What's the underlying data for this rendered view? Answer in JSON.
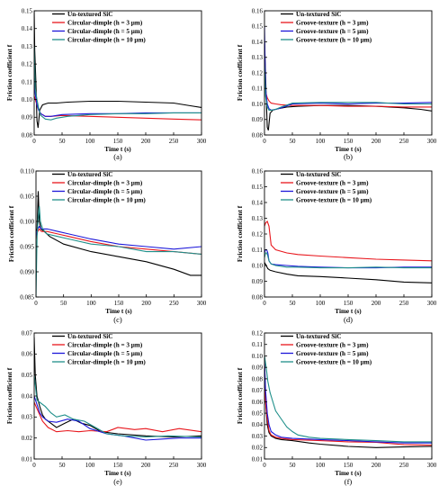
{
  "colors": {
    "untextured": "#000000",
    "h3": "#e8161c",
    "h5": "#1d17d9",
    "h10": "#1f8f8a"
  },
  "chart_data": [
    {
      "type": "line",
      "panel": "(a)",
      "xlabel": "Time t (s)",
      "ylabel": "Friction coefficient f",
      "xlim": [
        0,
        300
      ],
      "ylim": [
        0.08,
        0.15
      ],
      "xticks": [
        "0",
        "50",
        "100",
        "150",
        "200",
        "250",
        "300"
      ],
      "yticks": [
        "0.08",
        "0.09",
        "0.10",
        "0.11",
        "0.12",
        "0.13",
        "0.14",
        "0.15"
      ],
      "legend": "top-right",
      "series": [
        {
          "name": "Un-textured SiC",
          "color_key": "untextured",
          "x": [
            0,
            1,
            3,
            5,
            7,
            10,
            15,
            25,
            40,
            60,
            100,
            150,
            200,
            250,
            280,
            300
          ],
          "y": [
            0.15,
            0.128,
            0.11,
            0.088,
            0.084,
            0.094,
            0.097,
            0.098,
            0.098,
            0.0985,
            0.099,
            0.099,
            0.0985,
            0.098,
            0.0965,
            0.0955
          ]
        },
        {
          "name": "Circular-dimple (h = 3 μm)",
          "color_key": "h3",
          "x": [
            0,
            2,
            5,
            8,
            12,
            20,
            30,
            50,
            100,
            150,
            200,
            250,
            300
          ],
          "y": [
            0.102,
            0.1,
            0.097,
            0.094,
            0.092,
            0.0905,
            0.0905,
            0.091,
            0.0905,
            0.09,
            0.0895,
            0.089,
            0.0885
          ]
        },
        {
          "name": "Circular-dimple (h = 5 μm)",
          "color_key": "h5",
          "x": [
            0,
            2,
            5,
            8,
            12,
            20,
            30,
            50,
            100,
            150,
            200,
            250,
            300
          ],
          "y": [
            0.112,
            0.103,
            0.097,
            0.094,
            0.092,
            0.0905,
            0.0905,
            0.0915,
            0.092,
            0.092,
            0.0925,
            0.0925,
            0.0925
          ]
        },
        {
          "name": "Circular-dimple (h = 10 μm)",
          "color_key": "h10",
          "x": [
            0,
            2,
            5,
            8,
            12,
            20,
            30,
            40,
            60,
            100,
            150,
            200,
            250,
            300
          ],
          "y": [
            0.13,
            0.106,
            0.1,
            0.095,
            0.091,
            0.089,
            0.0885,
            0.0895,
            0.0905,
            0.0915,
            0.092,
            0.092,
            0.0925,
            0.0925
          ]
        }
      ]
    },
    {
      "type": "line",
      "panel": "(b)",
      "xlabel": "Time t (s)",
      "ylabel": "Friction coefficient f",
      "xlim": [
        0,
        300
      ],
      "ylim": [
        0.08,
        0.16
      ],
      "xticks": [
        "0",
        "50",
        "100",
        "150",
        "200",
        "250",
        "300"
      ],
      "yticks": [
        "0.08",
        "0.09",
        "0.10",
        "0.11",
        "0.12",
        "0.13",
        "0.14",
        "0.15",
        "0.16"
      ],
      "legend": "top-right",
      "series": [
        {
          "name": "Un-textured SiC",
          "color_key": "untextured",
          "x": [
            0,
            1,
            3,
            5,
            7,
            10,
            15,
            25,
            40,
            60,
            100,
            150,
            200,
            250,
            280,
            300
          ],
          "y": [
            0.14,
            0.13,
            0.105,
            0.085,
            0.083,
            0.094,
            0.096,
            0.097,
            0.098,
            0.0985,
            0.099,
            0.099,
            0.0985,
            0.0975,
            0.0965,
            0.0955
          ]
        },
        {
          "name": "Groove-texture (h = 3 μm)",
          "color_key": "h3",
          "x": [
            0,
            2,
            5,
            8,
            12,
            20,
            30,
            50,
            100,
            150,
            200,
            250,
            300
          ],
          "y": [
            0.118,
            0.108,
            0.104,
            0.102,
            0.1005,
            0.1,
            0.0995,
            0.099,
            0.099,
            0.0985,
            0.0985,
            0.098,
            0.098
          ]
        },
        {
          "name": "Groove-texture (h = 5 μm)",
          "color_key": "h5",
          "x": [
            0,
            2,
            5,
            8,
            12,
            20,
            30,
            50,
            100,
            150,
            200,
            250,
            300
          ],
          "y": [
            0.15,
            0.11,
            0.1,
            0.097,
            0.096,
            0.0965,
            0.0975,
            0.1,
            0.1005,
            0.1,
            0.1005,
            0.1005,
            0.101
          ]
        },
        {
          "name": "Groove-texture (h = 10 μm)",
          "color_key": "h10",
          "x": [
            0,
            2,
            5,
            8,
            12,
            20,
            30,
            50,
            100,
            150,
            200,
            250,
            300
          ],
          "y": [
            0.125,
            0.105,
            0.098,
            0.096,
            0.096,
            0.0965,
            0.098,
            0.1005,
            0.101,
            0.101,
            0.101,
            0.1,
            0.1
          ]
        }
      ]
    },
    {
      "type": "line",
      "panel": "(c)",
      "xlabel": "Time t (s)",
      "ylabel": "Friction coefficient f",
      "xlim": [
        0,
        300
      ],
      "ylim": [
        0.085,
        0.11
      ],
      "xticks": [
        "0",
        "50",
        "100",
        "150",
        "200",
        "250",
        "300"
      ],
      "yticks": [
        "0.085",
        "0.090",
        "0.095",
        "0.100",
        "0.105",
        "0.110"
      ],
      "legend": "top-right",
      "series": [
        {
          "name": "Un-textured SiC",
          "color_key": "untextured",
          "x": [
            0,
            2,
            4,
            6,
            9,
            15,
            25,
            50,
            100,
            150,
            200,
            250,
            280,
            300
          ],
          "y": [
            0.098,
            0.0985,
            0.106,
            0.1,
            0.0985,
            0.098,
            0.097,
            0.0955,
            0.094,
            0.093,
            0.092,
            0.0905,
            0.0893,
            0.0893
          ]
        },
        {
          "name": "Circular-dimple (h = 3 μm)",
          "color_key": "h3",
          "x": [
            0,
            3,
            6,
            10,
            20,
            40,
            60,
            100,
            150,
            200,
            250,
            300
          ],
          "y": [
            0.0965,
            0.098,
            0.0985,
            0.098,
            0.098,
            0.0975,
            0.097,
            0.096,
            0.095,
            0.0945,
            0.094,
            0.0935
          ]
        },
        {
          "name": "Circular-dimple (h = 5 μm)",
          "color_key": "h5",
          "x": [
            0,
            3,
            6,
            10,
            20,
            40,
            60,
            100,
            150,
            200,
            250,
            300
          ],
          "y": [
            0.097,
            0.0985,
            0.099,
            0.0985,
            0.0985,
            0.098,
            0.0975,
            0.0965,
            0.0955,
            0.095,
            0.0945,
            0.095
          ]
        },
        {
          "name": "Circular-dimple (h = 10 μm)",
          "color_key": "h10",
          "x": [
            0,
            2,
            4,
            6,
            8,
            12,
            20,
            40,
            60,
            100,
            150,
            200,
            250,
            300
          ],
          "y": [
            0.085,
            0.097,
            0.101,
            0.103,
            0.1,
            0.0985,
            0.0975,
            0.097,
            0.0965,
            0.0955,
            0.095,
            0.094,
            0.094,
            0.0935
          ]
        }
      ]
    },
    {
      "type": "line",
      "panel": "(d)",
      "xlabel": "Time t (s)",
      "ylabel": "Friction coefficient f",
      "xlim": [
        0,
        300
      ],
      "ylim": [
        0.08,
        0.16
      ],
      "xticks": [
        "0",
        "50",
        "100",
        "150",
        "200",
        "250",
        "300"
      ],
      "yticks": [
        "0.08",
        "0.09",
        "0.10",
        "0.11",
        "0.12",
        "0.13",
        "0.14",
        "0.15",
        "0.16"
      ],
      "legend": "top-right",
      "series": [
        {
          "name": "Un-textured SiC",
          "color_key": "untextured",
          "x": [
            0,
            3,
            6,
            10,
            20,
            40,
            60,
            100,
            150,
            200,
            250,
            300
          ],
          "y": [
            0.102,
            0.1,
            0.098,
            0.097,
            0.096,
            0.0945,
            0.0935,
            0.093,
            0.092,
            0.091,
            0.0895,
            0.089
          ]
        },
        {
          "name": "Groove-texture (h = 3 μm)",
          "color_key": "h3",
          "x": [
            0,
            2,
            5,
            8,
            12,
            20,
            40,
            60,
            100,
            150,
            200,
            250,
            300
          ],
          "y": [
            0.125,
            0.127,
            0.128,
            0.125,
            0.113,
            0.11,
            0.108,
            0.107,
            0.106,
            0.105,
            0.104,
            0.1035,
            0.103
          ]
        },
        {
          "name": "Groove-texture (h = 5 μm)",
          "color_key": "h5",
          "x": [
            0,
            2,
            4,
            6,
            8,
            12,
            20,
            40,
            60,
            100,
            150,
            200,
            250,
            300
          ],
          "y": [
            0.108,
            0.11,
            0.11,
            0.108,
            0.103,
            0.101,
            0.1005,
            0.1,
            0.0995,
            0.099,
            0.0985,
            0.0985,
            0.099,
            0.099
          ]
        },
        {
          "name": "Groove-texture (h = 10 μm)",
          "color_key": "h10",
          "x": [
            0,
            2,
            4,
            6,
            8,
            12,
            20,
            40,
            60,
            100,
            150,
            200,
            250,
            300
          ],
          "y": [
            0.105,
            0.108,
            0.108,
            0.106,
            0.103,
            0.101,
            0.1,
            0.099,
            0.099,
            0.0985,
            0.0985,
            0.099,
            0.0985,
            0.0985
          ]
        }
      ]
    },
    {
      "type": "line",
      "panel": "(e)",
      "xlabel": "Time t (s)",
      "ylabel": "Friction coefficient f",
      "xlim": [
        0,
        300
      ],
      "ylim": [
        0.01,
        0.07
      ],
      "xticks": [
        "0",
        "50",
        "100",
        "150",
        "200",
        "250",
        "300"
      ],
      "yticks": [
        "0.01",
        "0.02",
        "0.03",
        "0.04",
        "0.05",
        "0.06",
        "0.07"
      ],
      "legend": "top-right",
      "series": [
        {
          "name": "Un-textured SiC",
          "color_key": "untextured",
          "x": [
            0,
            2,
            5,
            10,
            15,
            20,
            30,
            40,
            55,
            70,
            85,
            100,
            120,
            150,
            200,
            250,
            300
          ],
          "y": [
            0.068,
            0.05,
            0.04,
            0.035,
            0.031,
            0.029,
            0.027,
            0.025,
            0.027,
            0.029,
            0.027,
            0.026,
            0.023,
            0.022,
            0.021,
            0.0205,
            0.021
          ]
        },
        {
          "name": "Circular-dimple (h = 3 μm)",
          "color_key": "h3",
          "x": [
            0,
            5,
            10,
            15,
            25,
            40,
            60,
            80,
            100,
            130,
            150,
            180,
            200,
            230,
            260,
            300
          ],
          "y": [
            0.037,
            0.034,
            0.031,
            0.028,
            0.025,
            0.023,
            0.0235,
            0.023,
            0.0235,
            0.023,
            0.025,
            0.024,
            0.0245,
            0.023,
            0.0245,
            0.023
          ]
        },
        {
          "name": "Circular-dimple (h = 5 μm)",
          "color_key": "h5",
          "x": [
            0,
            5,
            10,
            15,
            25,
            40,
            60,
            80,
            100,
            130,
            160,
            200,
            230,
            260,
            300
          ],
          "y": [
            0.04,
            0.036,
            0.032,
            0.03,
            0.028,
            0.0275,
            0.029,
            0.028,
            0.0245,
            0.022,
            0.021,
            0.019,
            0.0195,
            0.02,
            0.02
          ]
        },
        {
          "name": "Circular-dimple (h = 10 μm)",
          "color_key": "h10",
          "x": [
            0,
            5,
            10,
            20,
            30,
            40,
            55,
            70,
            90,
            110,
            130,
            160,
            200,
            240,
            300
          ],
          "y": [
            0.05,
            0.038,
            0.037,
            0.035,
            0.032,
            0.03,
            0.031,
            0.029,
            0.028,
            0.025,
            0.022,
            0.021,
            0.0205,
            0.021,
            0.0205
          ]
        }
      ]
    },
    {
      "type": "line",
      "panel": "(f)",
      "xlabel": "Time t (s)",
      "ylabel": "Friction coefficient f",
      "xlim": [
        0,
        300
      ],
      "ylim": [
        0.01,
        0.12
      ],
      "xticks": [
        "0",
        "50",
        "100",
        "150",
        "200",
        "250",
        "300"
      ],
      "yticks": [
        "0.01",
        "0.02",
        "0.03",
        "0.04",
        "0.05",
        "0.06",
        "0.07",
        "0.08",
        "0.09",
        "0.10",
        "0.11",
        "0.12"
      ],
      "legend": "top-right",
      "series": [
        {
          "name": "Un-textured SiC",
          "color_key": "untextured",
          "x": [
            0,
            2,
            5,
            8,
            12,
            20,
            30,
            50,
            80,
            100,
            150,
            200,
            250,
            300
          ],
          "y": [
            0.1,
            0.06,
            0.04,
            0.033,
            0.03,
            0.028,
            0.027,
            0.026,
            0.024,
            0.023,
            0.021,
            0.02,
            0.0205,
            0.021
          ]
        },
        {
          "name": "Groove-texture (h = 3 μm)",
          "color_key": "h3",
          "x": [
            0,
            2,
            5,
            8,
            12,
            20,
            30,
            50,
            100,
            150,
            200,
            250,
            300
          ],
          "y": [
            0.075,
            0.06,
            0.045,
            0.035,
            0.031,
            0.029,
            0.028,
            0.027,
            0.026,
            0.025,
            0.0245,
            0.0225,
            0.022
          ]
        },
        {
          "name": "Groove-texture (h = 5 μm)",
          "color_key": "h5",
          "x": [
            0,
            2,
            5,
            8,
            12,
            20,
            30,
            50,
            100,
            150,
            200,
            250,
            300
          ],
          "y": [
            0.095,
            0.07,
            0.05,
            0.04,
            0.034,
            0.031,
            0.029,
            0.028,
            0.027,
            0.026,
            0.025,
            0.024,
            0.024
          ]
        },
        {
          "name": "Groove-texture (h = 10 μm)",
          "color_key": "h10",
          "x": [
            0,
            3,
            6,
            10,
            15,
            20,
            30,
            40,
            50,
            60,
            80,
            100,
            150,
            200,
            250,
            300
          ],
          "y": [
            0.1,
            0.09,
            0.078,
            0.068,
            0.06,
            0.052,
            0.045,
            0.038,
            0.034,
            0.031,
            0.029,
            0.028,
            0.027,
            0.026,
            0.025,
            0.025
          ]
        }
      ]
    }
  ]
}
